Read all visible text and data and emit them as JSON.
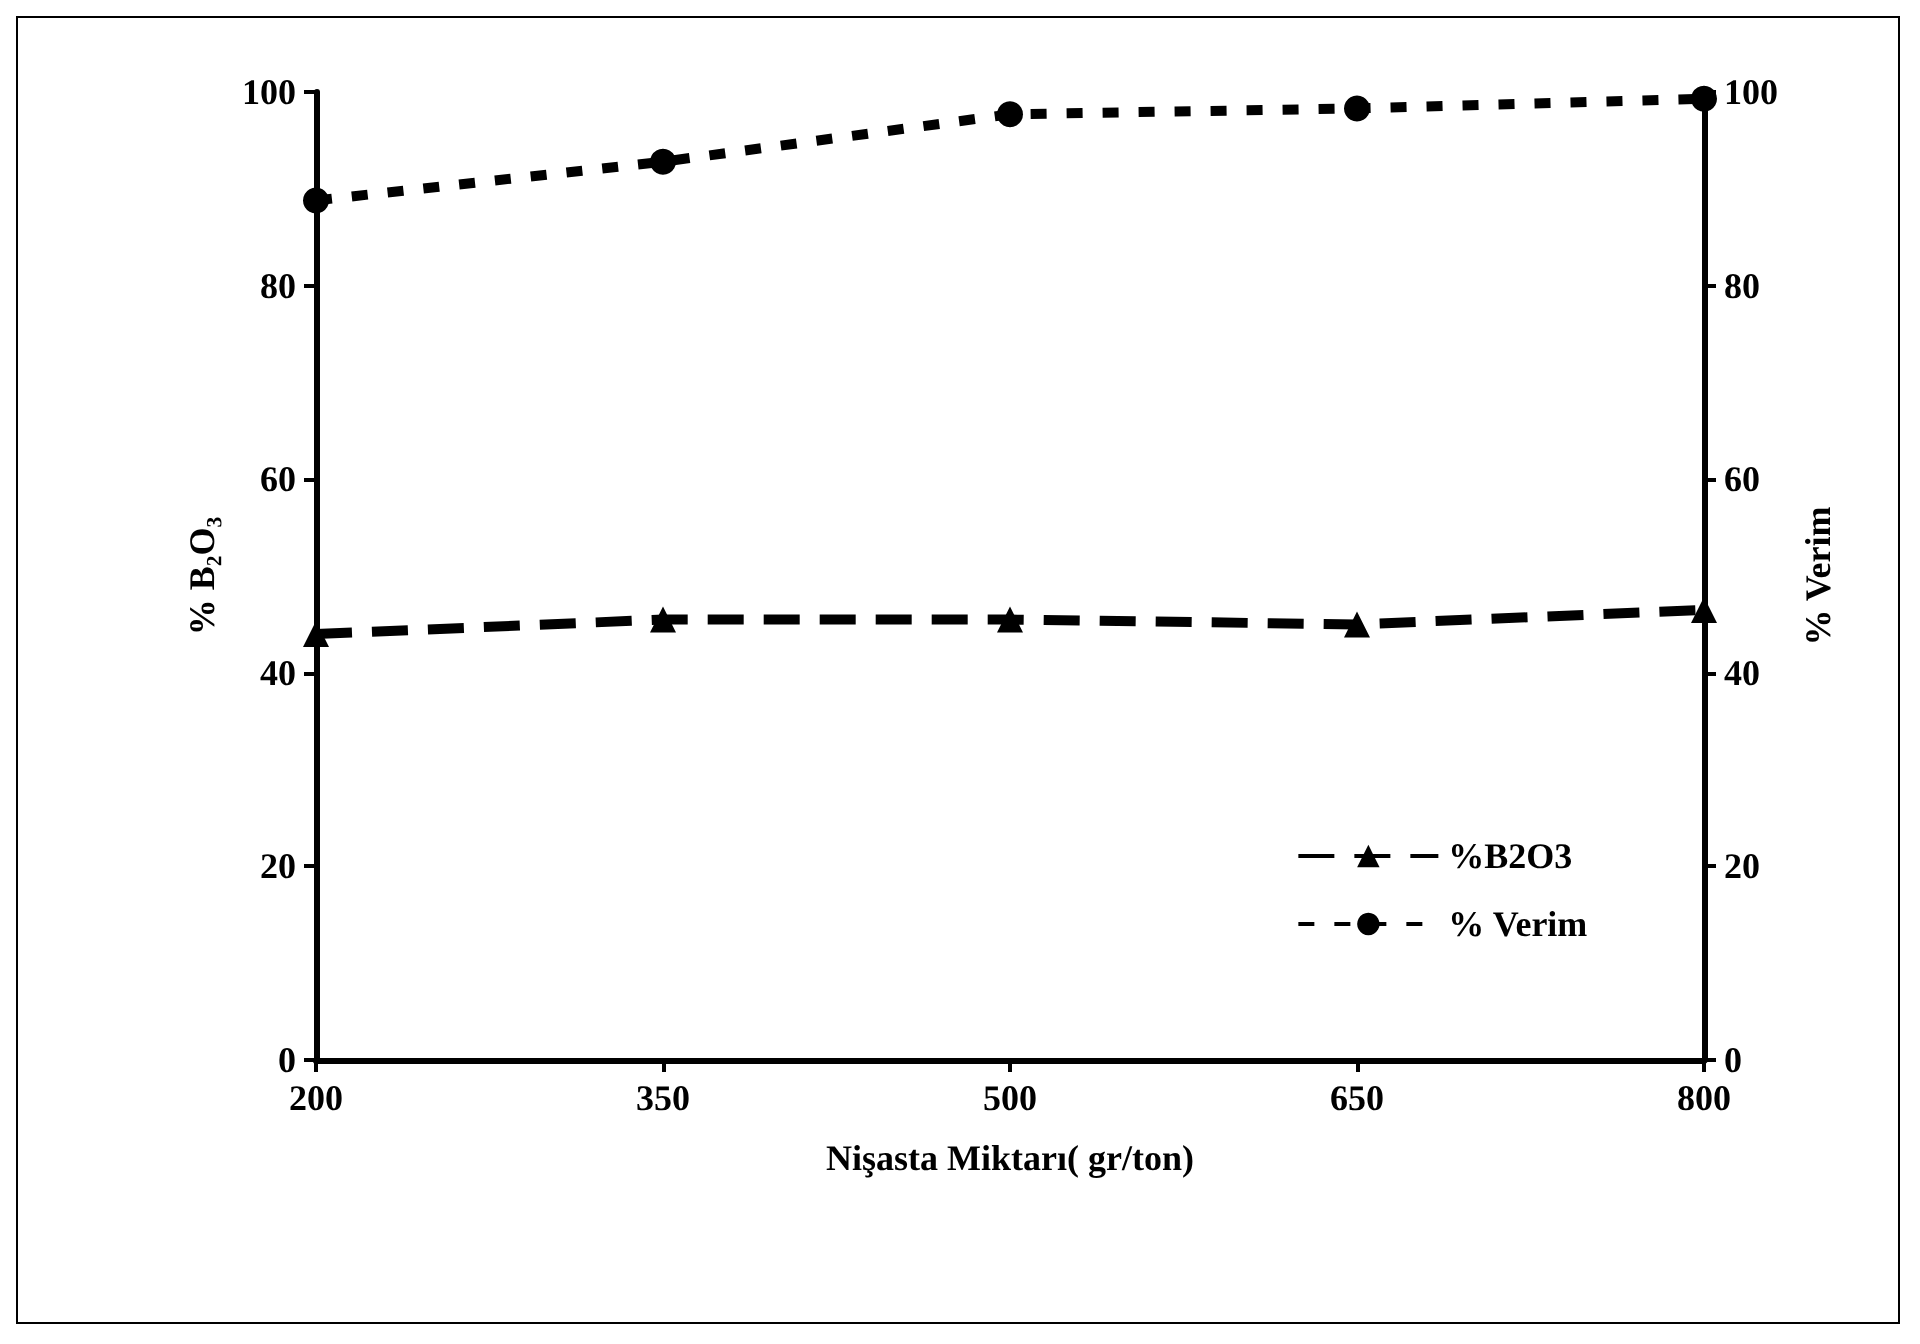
{
  "chart_data": {
    "type": "line",
    "xlabel": "Nişasta Miktarı( gr/ton)",
    "ylabel": "% B₂O₃",
    "y2label": "% Verim",
    "x": [
      200,
      350,
      500,
      650,
      800
    ],
    "xlim": [
      200,
      800
    ],
    "xticks": [
      200,
      350,
      500,
      650,
      800
    ],
    "ylim": [
      0,
      100
    ],
    "yticks": [
      0,
      20,
      40,
      60,
      80,
      100
    ],
    "y2lim": [
      0,
      100
    ],
    "y2ticks": [
      0,
      20,
      40,
      60,
      80,
      100
    ],
    "series": [
      {
        "name": "%B2O3",
        "color": "#000000",
        "values": [
          44,
          45.5,
          45.5,
          45,
          46.5
        ],
        "marker": "triangle",
        "line_style": "dashed"
      },
      {
        "name": "% Verim",
        "color": "#000000",
        "values": [
          88.8,
          92.8,
          97.7,
          98.3,
          99.3
        ],
        "axis": "y2",
        "marker": "circle",
        "line_style": "dotted"
      }
    ],
    "grid": false,
    "legend": "bottom right"
  }
}
